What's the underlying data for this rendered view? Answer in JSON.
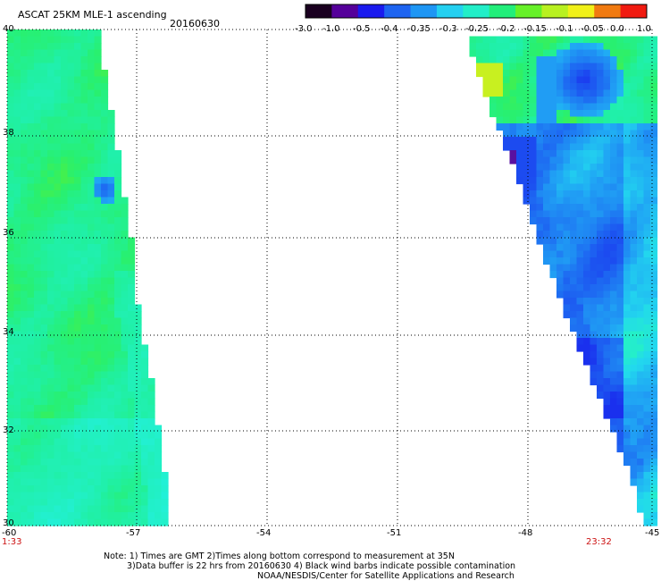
{
  "header": {
    "title": "ASCAT 25KM MLE-1 ascending",
    "date": "20160630"
  },
  "colorbar": {
    "tick_labels": [
      "-3.0",
      "-1.0",
      "-0.5",
      "-0.4",
      "-0.35",
      "-0.3",
      "-0.25",
      "-0.2",
      "-0.15",
      "-0.1",
      "-0.05",
      "0.0",
      "1.0"
    ],
    "colors": [
      "#1a0020",
      "#55009a",
      "#1a1aee",
      "#1e64f0",
      "#1e96f4",
      "#24d0f0",
      "#22eec8",
      "#22ee7a",
      "#66f028",
      "#b8f020",
      "#f0f018",
      "#f07a10",
      "#f01a10"
    ]
  },
  "map": {
    "lat_labels": [
      "40",
      "38",
      "36",
      "34",
      "32",
      "30"
    ],
    "lon_labels": [
      "-60",
      "-57",
      "-54",
      "-51",
      "-48",
      "-45"
    ],
    "time_left": "1:33",
    "time_right": "23:32"
  },
  "footer": {
    "note_line1": "Note: 1) Times are GMT 2)Times along bottom correspond to measurement at 35N",
    "note_line2": "3)Data buffer is 22 hrs from 20160630 4) Black wind barbs indicate possible contamination",
    "credit": "NOAA/NESDIS/Center for Satellite Applications and Research"
  }
}
